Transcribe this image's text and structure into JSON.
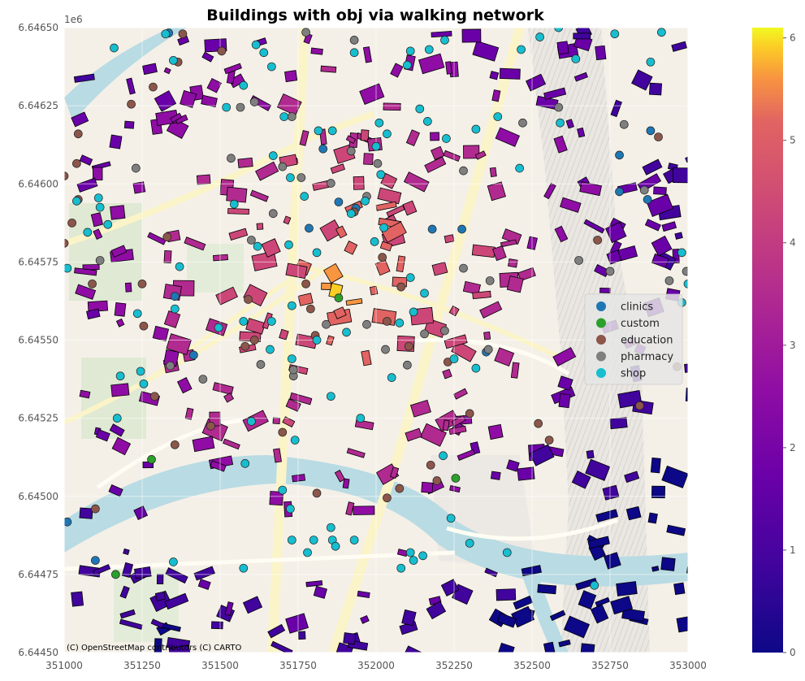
{
  "chart_data": {
    "type": "scatter",
    "title": "Buildings with obj via walking network",
    "xlim": [
      351000,
      353000
    ],
    "ylim": [
      6644500,
      6646500
    ],
    "x_ticks": [
      351000,
      351250,
      351500,
      351750,
      352000,
      352250,
      352500,
      352750,
      353000
    ],
    "y_ticks": [
      6644500,
      6644750,
      6645000,
      6645250,
      6645500,
      6645750,
      6646000,
      6646250,
      6646500
    ],
    "x_tick_labels": [
      "351000",
      "351250",
      "351500",
      "351750",
      "352000",
      "352250",
      "352500",
      "352750",
      "353000"
    ],
    "y_tick_labels": [
      "6.64450",
      "6.64475",
      "6.64500",
      "6.64525",
      "6.64550",
      "6.64575",
      "6.64600",
      "6.64625",
      "6.64650"
    ],
    "y_offset_text": "1e6",
    "grid": true,
    "legend_position": "center-right",
    "colorbar": {
      "cmap": "plasma",
      "min": 0,
      "max": 6.1,
      "ticks": [
        0,
        1,
        2,
        3,
        4,
        5,
        6
      ],
      "tick_labels": [
        "0",
        "1",
        "2",
        "3",
        "4",
        "5",
        "6"
      ]
    },
    "attribution": "(C) OpenStreetMap contributors (C) CARTO",
    "series": [
      {
        "name": "clinics",
        "color": "#1f77b4",
        "points": [
          [
            351335,
            6646483
          ],
          [
            352880,
            6646170
          ],
          [
            352780,
            6646092
          ],
          [
            351830,
            6646112
          ],
          [
            352780,
            6645975
          ],
          [
            351935,
            6645922
          ],
          [
            351880,
            6645942
          ],
          [
            351785,
            6645858
          ],
          [
            351355,
            6645640
          ],
          [
            351415,
            6645452
          ],
          [
            352353,
            6645462
          ],
          [
            351100,
            6644795
          ],
          [
            351010,
            6644918
          ],
          [
            352870,
            6645950
          ],
          [
            352180,
            6645855
          ],
          [
            352275,
            6645855
          ]
        ]
      },
      {
        "name": "custom",
        "color": "#2ca02c",
        "points": [
          [
            351880,
            6645635
          ],
          [
            351280,
            6645118
          ],
          [
            352255,
            6645058
          ],
          [
            351165,
            6644750
          ]
        ]
      },
      {
        "name": "education",
        "color": "#8c564b",
        "points": [
          [
            351380,
            6646480
          ],
          [
            351505,
            6646425
          ],
          [
            351285,
            6646310
          ],
          [
            351365,
            6646390
          ],
          [
            351215,
            6646255
          ],
          [
            351045,
            6646160
          ],
          [
            351040,
            6646065
          ],
          [
            351000,
            6646025
          ],
          [
            351045,
            6645950
          ],
          [
            351025,
            6645875
          ],
          [
            351330,
            6645830
          ],
          [
            351590,
            6645630
          ],
          [
            351610,
            6645500
          ],
          [
            351775,
            6645680
          ],
          [
            351790,
            6645600
          ],
          [
            351805,
            6645515
          ],
          [
            351930,
            6645910
          ],
          [
            352020,
            6645765
          ],
          [
            352035,
            6645560
          ],
          [
            352300,
            6645265
          ],
          [
            352520,
            6645233
          ],
          [
            352555,
            6645180
          ],
          [
            352845,
            6645290
          ],
          [
            352905,
            6646150
          ],
          [
            352965,
            6645415
          ],
          [
            352105,
            6645480
          ],
          [
            352175,
            6645100
          ],
          [
            352195,
            6645050
          ],
          [
            352075,
            6645025
          ],
          [
            352035,
            6644995
          ],
          [
            351810,
            6645010
          ],
          [
            351700,
            6645205
          ],
          [
            351470,
            6645225
          ],
          [
            351355,
            6645165
          ],
          [
            351255,
            6645545
          ],
          [
            351290,
            6645320
          ],
          [
            351090,
            6645680
          ],
          [
            351000,
            6645810
          ],
          [
            351100,
            6644960
          ],
          [
            351580,
            6645480
          ],
          [
            351250,
            6645680
          ],
          [
            352080,
            6645670
          ],
          [
            352230,
            6645430
          ],
          [
            352710,
            6645820
          ]
        ]
      },
      {
        "name": "pharmacy",
        "color": "#7f7f7f",
        "points": [
          [
            351775,
            6646485
          ],
          [
            351930,
            6646460
          ],
          [
            351920,
            6646105
          ],
          [
            351730,
            6646215
          ],
          [
            351610,
            6646262
          ],
          [
            351565,
            6646245
          ],
          [
            351535,
            6646082
          ],
          [
            351700,
            6646055
          ],
          [
            351760,
            6646020
          ],
          [
            351855,
            6646002
          ],
          [
            352005,
            6646065
          ],
          [
            352280,
            6646042
          ],
          [
            352585,
            6646245
          ],
          [
            352470,
            6646195
          ],
          [
            352795,
            6646190
          ],
          [
            352860,
            6645980
          ],
          [
            352650,
            6645755
          ],
          [
            352750,
            6645720
          ],
          [
            352940,
            6645690
          ],
          [
            352995,
            6645720
          ],
          [
            352360,
            6645470
          ],
          [
            352220,
            6645530
          ],
          [
            352155,
            6645520
          ],
          [
            351970,
            6645550
          ],
          [
            351840,
            6645550
          ],
          [
            352030,
            6645470
          ],
          [
            352100,
            6645420
          ],
          [
            351630,
            6645422
          ],
          [
            351735,
            6645385
          ],
          [
            351445,
            6645375
          ],
          [
            351340,
            6645418
          ],
          [
            351230,
            6646050
          ],
          [
            351115,
            6645755
          ],
          [
            351735,
            6645405
          ],
          [
            352280,
            6645730
          ],
          [
            351600,
            6645820
          ],
          [
            351670,
            6645905
          ],
          [
            351970,
            6645960
          ],
          [
            352365,
            6645690
          ]
        ]
      },
      {
        "name": "shop",
        "color": "#17becf",
        "points": [
          [
            351325,
            6646480
          ],
          [
            351160,
            6646435
          ],
          [
            351350,
            6646395
          ],
          [
            351615,
            6646445
          ],
          [
            351640,
            6646420
          ],
          [
            351665,
            6646375
          ],
          [
            351575,
            6646315
          ],
          [
            351520,
            6646245
          ],
          [
            351705,
            6646215
          ],
          [
            351815,
            6646170
          ],
          [
            351930,
            6646420
          ],
          [
            352100,
            6646380
          ],
          [
            352110,
            6646425
          ],
          [
            352170,
            6646430
          ],
          [
            352220,
            6646460
          ],
          [
            352465,
            6646430
          ],
          [
            352525,
            6646470
          ],
          [
            352585,
            6646500
          ],
          [
            352640,
            6646400
          ],
          [
            352765,
            6646480
          ],
          [
            352880,
            6646390
          ],
          [
            352915,
            6646485
          ],
          [
            352320,
            6646175
          ],
          [
            352390,
            6646215
          ],
          [
            352590,
            6646195
          ],
          [
            352140,
            6646240
          ],
          [
            352165,
            6646200
          ],
          [
            352010,
            6646195
          ],
          [
            352035,
            6646160
          ],
          [
            352000,
            6646120
          ],
          [
            352015,
            6646030
          ],
          [
            352225,
            6646145
          ],
          [
            352460,
            6646050
          ],
          [
            351860,
            6646170
          ],
          [
            351670,
            6646090
          ],
          [
            351725,
            6646020
          ],
          [
            351770,
            6645960
          ],
          [
            351965,
            6645945
          ],
          [
            351920,
            6645905
          ],
          [
            352025,
            6645860
          ],
          [
            351720,
            6645805
          ],
          [
            351810,
            6645780
          ],
          [
            351620,
            6645800
          ],
          [
            351545,
            6645935
          ],
          [
            351370,
            6645735
          ],
          [
            351115,
            6645925
          ],
          [
            351075,
            6645845
          ],
          [
            351140,
            6645870
          ],
          [
            351355,
            6645600
          ],
          [
            351235,
            6645585
          ],
          [
            351575,
            6645560
          ],
          [
            351495,
            6645540
          ],
          [
            351665,
            6645560
          ],
          [
            351810,
            6645500
          ],
          [
            351905,
            6645525
          ],
          [
            352075,
            6645555
          ],
          [
            352120,
            6645590
          ],
          [
            352250,
            6645440
          ],
          [
            352320,
            6645410
          ],
          [
            352155,
            6645650
          ],
          [
            352110,
            6645700
          ],
          [
            351995,
            6645815
          ],
          [
            351730,
            6645610
          ],
          [
            351660,
            6645470
          ],
          [
            351730,
            6645440
          ],
          [
            351855,
            6645320
          ],
          [
            352050,
            6645380
          ],
          [
            351950,
            6645250
          ],
          [
            351740,
            6645180
          ],
          [
            351600,
            6645240
          ],
          [
            351350,
            6644790
          ],
          [
            351575,
            6644770
          ],
          [
            351730,
            6644860
          ],
          [
            351800,
            6644860
          ],
          [
            351860,
            6644860
          ],
          [
            351870,
            6644840
          ],
          [
            351780,
            6644820
          ],
          [
            352110,
            6644820
          ],
          [
            352120,
            6644795
          ],
          [
            352150,
            6644810
          ],
          [
            351180,
            6645385
          ],
          [
            351245,
            6645400
          ],
          [
            351255,
            6645360
          ],
          [
            352215,
            6645130
          ],
          [
            352240,
            6644930
          ],
          [
            352300,
            6644850
          ],
          [
            352420,
            6644820
          ],
          [
            352700,
            6644715
          ],
          [
            352980,
            6645620
          ],
          [
            352980,
            6645780
          ],
          [
            353000,
            6645680
          ],
          [
            351170,
            6645250
          ],
          [
            351580,
            6645105
          ],
          [
            351700,
            6645020
          ],
          [
            351725,
            6644960
          ],
          [
            351855,
            6644900
          ],
          [
            351930,
            6644860
          ],
          [
            352080,
            6644770
          ],
          [
            352355,
            6644450
          ],
          [
            351010,
            6645730
          ],
          [
            351110,
            6645955
          ],
          [
            351040,
            6645945
          ]
        ]
      }
    ]
  }
}
